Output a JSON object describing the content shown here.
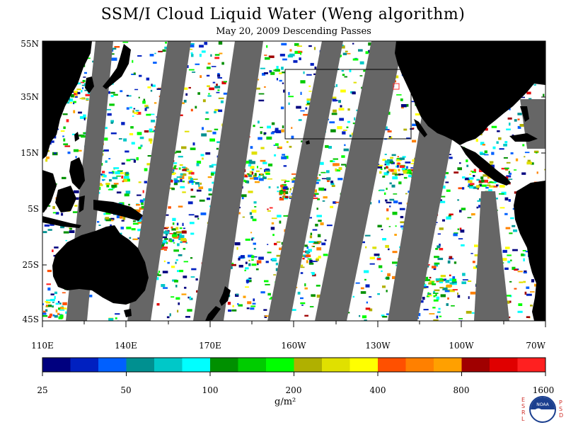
{
  "title": "SSM/I Cloud Liquid Water (Weng algorithm)",
  "subtitle": "May 20, 2009  Descending Passes",
  "lat_labels": [
    "55N",
    "35N",
    "15N",
    "5S",
    "25S",
    "45S"
  ],
  "lon_labels": [
    "110E",
    "140E",
    "170E",
    "160W",
    "130W",
    "100W",
    "70W"
  ],
  "colorbar": {
    "colors": [
      "#00007f",
      "#0020c0",
      "#0060ff",
      "#009090",
      "#00c8c8",
      "#00ffff",
      "#009000",
      "#00cc00",
      "#00ff00",
      "#b0b000",
      "#e0e000",
      "#ffff00",
      "#ff5000",
      "#ff8000",
      "#ffa000",
      "#a00000",
      "#e00000",
      "#ff2020"
    ],
    "tick_labels": [
      "25",
      "50",
      "100",
      "200",
      "400",
      "800",
      "1600"
    ],
    "units": "g/m²"
  },
  "logo": {
    "left_letters": [
      "E",
      "S",
      "R",
      "L"
    ],
    "right_letters": [
      "P",
      "S",
      "D"
    ],
    "center": "NOAA"
  },
  "colors": {
    "land": "#000000",
    "gap": "#666666",
    "background": "#ffffff"
  }
}
